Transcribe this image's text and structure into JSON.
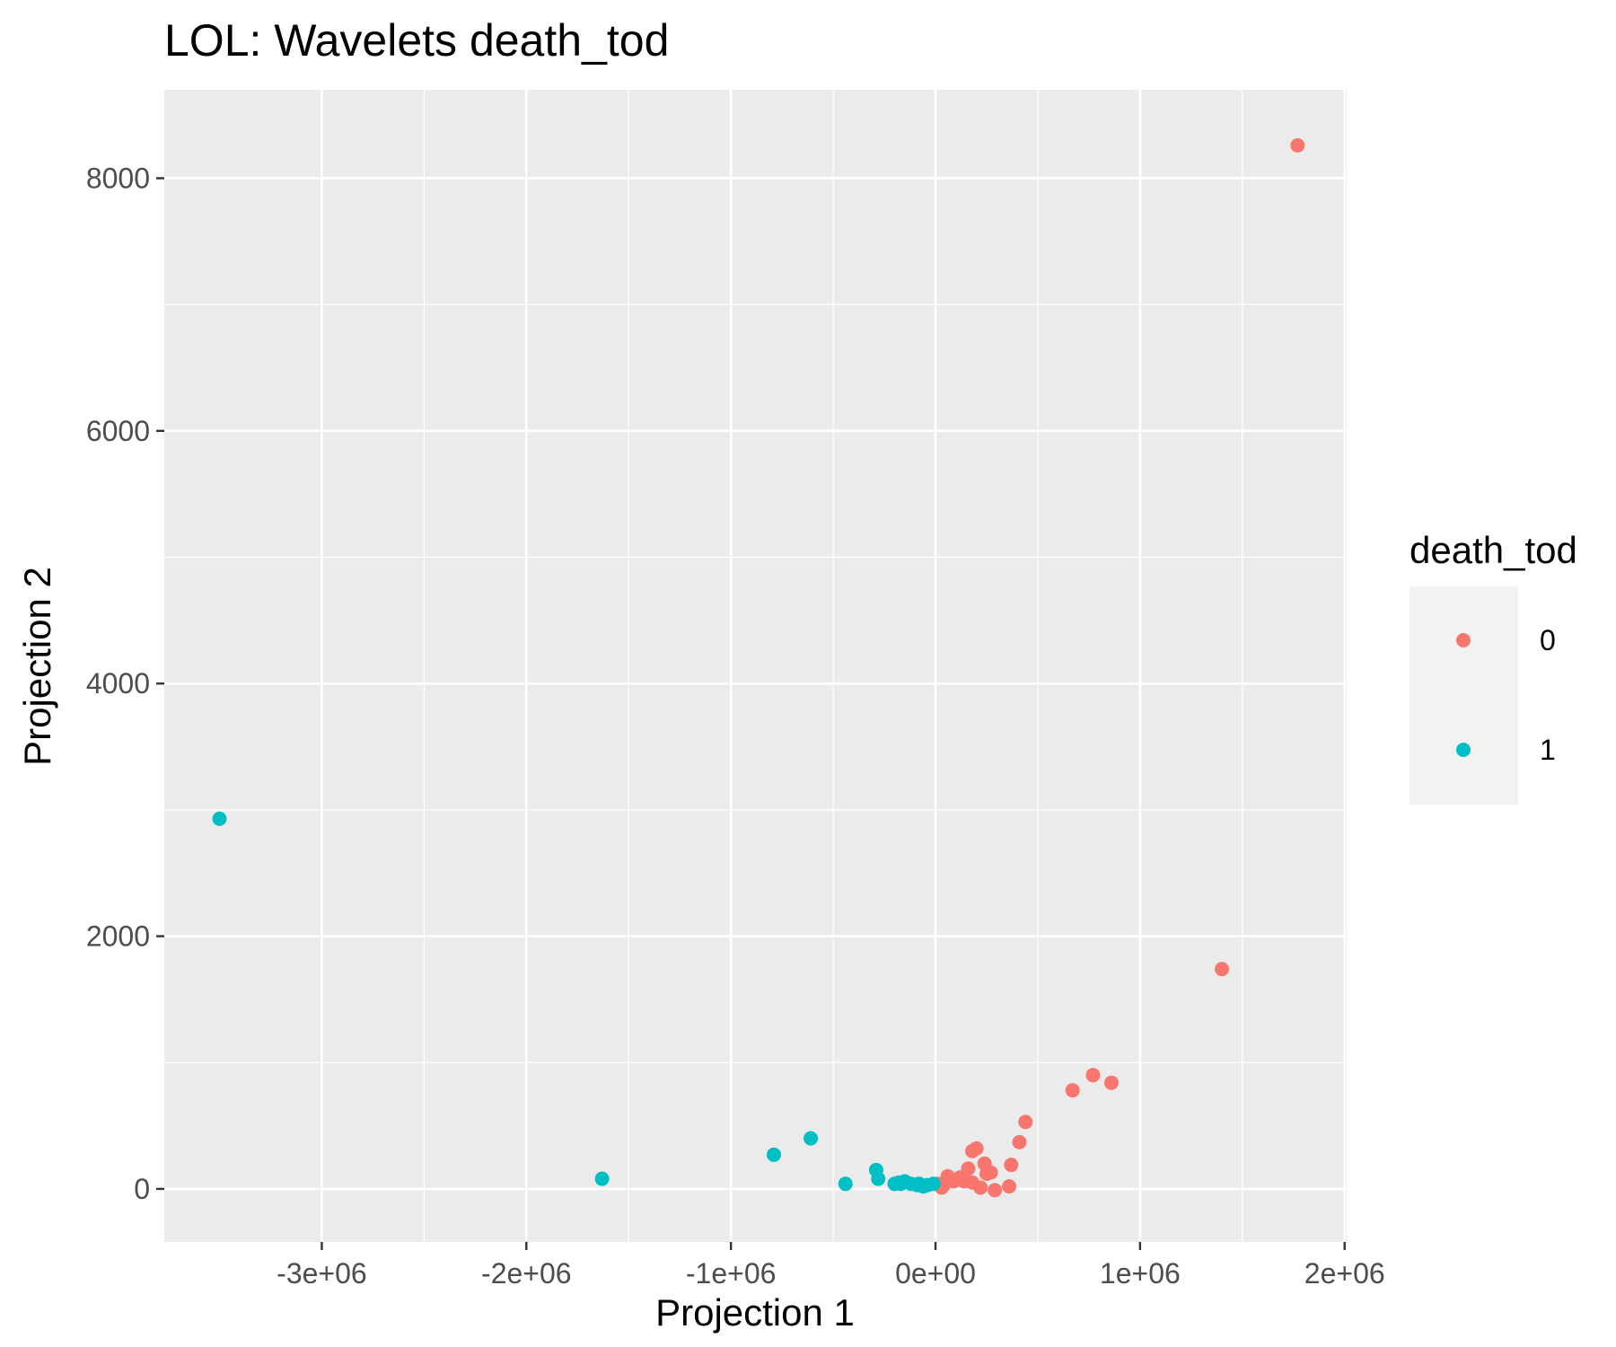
{
  "chart_data": {
    "type": "scatter",
    "title": "LOL: Wavelets death_tod",
    "xlabel": "Projection 1",
    "ylabel": "Projection 2",
    "xlim": [
      -3770000,
      2010000
    ],
    "ylim": [
      -420,
      8700
    ],
    "x_ticks": [
      -3000000,
      -2000000,
      -1000000,
      0,
      1000000,
      2000000
    ],
    "x_tick_labels": [
      "-3e+06",
      "-2e+06",
      "-1e+06",
      "0e+00",
      "1e+06",
      "2e+06"
    ],
    "y_ticks": [
      0,
      2000,
      4000,
      6000,
      8000
    ],
    "y_tick_labels": [
      "0",
      "2000",
      "4000",
      "6000",
      "8000"
    ],
    "grid": true,
    "legend": {
      "title": "death_tod",
      "position": "right",
      "entries": [
        {
          "label": "0",
          "color": "#F8766D"
        },
        {
          "label": "1",
          "color": "#00BFC4"
        }
      ]
    },
    "series": [
      {
        "name": "0",
        "color": "#F8766D",
        "points": [
          [
            1770000,
            8260
          ],
          [
            1400000,
            1740
          ],
          [
            770000,
            900
          ],
          [
            860000,
            840
          ],
          [
            670000,
            780
          ],
          [
            440000,
            530
          ],
          [
            410000,
            370
          ],
          [
            200000,
            320
          ],
          [
            180000,
            300
          ],
          [
            370000,
            190
          ],
          [
            240000,
            200
          ],
          [
            160000,
            160
          ],
          [
            60000,
            100
          ],
          [
            120000,
            90
          ],
          [
            140000,
            60
          ],
          [
            250000,
            120
          ],
          [
            270000,
            130
          ],
          [
            90000,
            60
          ],
          [
            40000,
            30
          ],
          [
            30000,
            10
          ],
          [
            220000,
            10
          ],
          [
            290000,
            -10
          ],
          [
            360000,
            20
          ],
          [
            180000,
            50
          ],
          [
            10000,
            40
          ]
        ]
      },
      {
        "name": "1",
        "color": "#00BFC4",
        "points": [
          [
            -3500000,
            2930
          ],
          [
            -1630000,
            80
          ],
          [
            -790000,
            270
          ],
          [
            -610000,
            400
          ],
          [
            -440000,
            40
          ],
          [
            -290000,
            150
          ],
          [
            -280000,
            80
          ],
          [
            -200000,
            40
          ],
          [
            -170000,
            40
          ],
          [
            -150000,
            60
          ],
          [
            -120000,
            40
          ],
          [
            -90000,
            30
          ],
          [
            -60000,
            20
          ],
          [
            -40000,
            30
          ],
          [
            -10000,
            40
          ],
          [
            -180000,
            50
          ],
          [
            -80000,
            40
          ]
        ]
      }
    ]
  }
}
